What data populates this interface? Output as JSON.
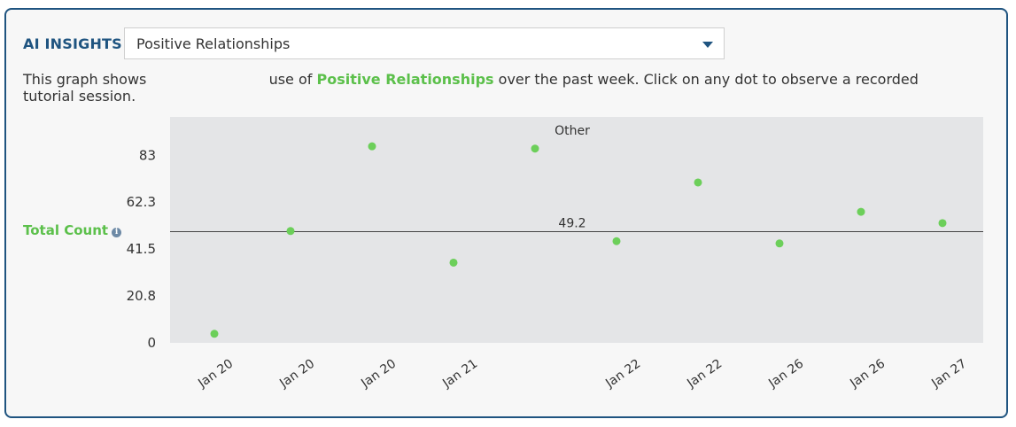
{
  "header": {
    "label": "AI INSIGHTS",
    "select_value": "Positive Relationships"
  },
  "description": {
    "prefix": "This graph shows",
    "middle": "use of",
    "highlight": "Positive Relationships",
    "suffix": "over the past week. Click on any dot to observe a recorded tutorial session."
  },
  "colors": {
    "accent_green": "#5cc04b",
    "brand_blue": "#1f5480",
    "plot_background": "#e4e5e7",
    "point_color": "#6ccf5a"
  },
  "icons": {
    "dropdown": "caret-down-icon",
    "info": "info-icon"
  },
  "chart_data": {
    "type": "scatter",
    "xlabel": "",
    "ylabel": "Total Count",
    "ylim": [
      0,
      100
    ],
    "yticks": [
      0,
      20.8,
      41.5,
      62.3,
      83
    ],
    "ytick_labels": [
      "0",
      "20.8",
      "41.5",
      "62.3",
      "83"
    ],
    "categories": [
      "Jan 20",
      "Jan 20",
      "Jan 20",
      "Jan 21",
      "",
      "Jan 22",
      "Jan 22",
      "Jan 26",
      "Jan 26",
      "Jan 27"
    ],
    "values": [
      4,
      49.5,
      87,
      35.5,
      86,
      45,
      71,
      44,
      58,
      53
    ],
    "reference_line": {
      "value": 49.2,
      "label": "49.2"
    },
    "annotations": [
      {
        "text": "Other",
        "category_index": 4
      }
    ],
    "grid": false,
    "legend": "none"
  }
}
